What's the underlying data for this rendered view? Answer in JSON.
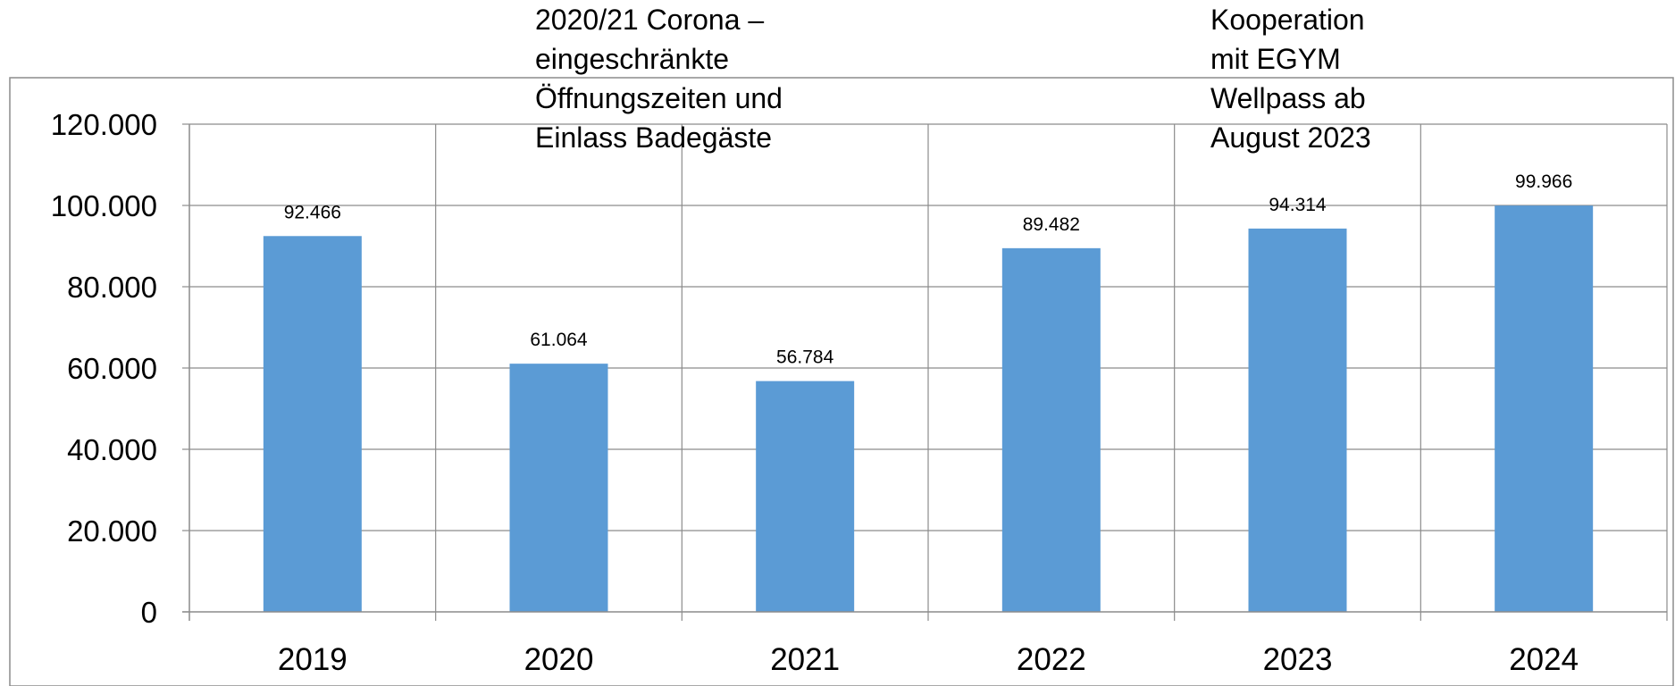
{
  "chart_data": {
    "type": "bar",
    "categories": [
      "2019",
      "2020",
      "2021",
      "2022",
      "2023",
      "2024"
    ],
    "values": [
      92466,
      61064,
      56784,
      89482,
      94314,
      99966
    ],
    "value_labels": [
      "92.466",
      "61.064",
      "56.784",
      "89.482",
      "94.314",
      "99.966"
    ],
    "ylim": [
      0,
      120000
    ],
    "yticks": [
      0,
      20000,
      40000,
      60000,
      80000,
      100000,
      120000
    ],
    "ytick_labels": [
      "0",
      "20.000",
      "40.000",
      "60.000",
      "80.000",
      "100.000",
      "120.000"
    ],
    "grid": true,
    "bar_color": "#5B9BD5",
    "grid_color": "#8C8C8C",
    "annotations": [
      {
        "text": "2020/21 Corona –\neingeschränkte\nÖffnungszeiten und\nEinlass Badegäste"
      },
      {
        "text": "Kooperation\nmit EGYM\nWellpass ab\nAugust 2023"
      }
    ]
  }
}
